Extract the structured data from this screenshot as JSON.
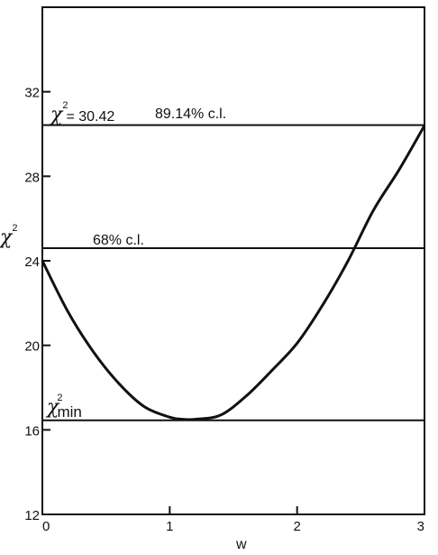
{
  "chart_data": {
    "type": "line",
    "xlabel": "w",
    "ylabel_symbol": "χ",
    "ylabel_exponent": "2",
    "xlim": [
      0,
      3
    ],
    "ylim": [
      12,
      36
    ],
    "x_ticks": [
      0,
      1,
      2,
      3
    ],
    "x_tick_labels": [
      "0",
      "1",
      "2",
      "3"
    ],
    "y_ticks": [
      12,
      16,
      20,
      24,
      28,
      32
    ],
    "y_tick_labels": [
      "12",
      "16",
      "20",
      "24",
      "28",
      "32"
    ],
    "grid": false,
    "series": [
      {
        "x": [
          0,
          0.2,
          0.4,
          0.6,
          0.8,
          1.0,
          1.1,
          1.2,
          1.4,
          1.6,
          1.8,
          2.0,
          2.2,
          2.4,
          2.6,
          2.8,
          3.0
        ],
        "y": [
          24.0,
          21.6,
          19.7,
          18.2,
          17.1,
          16.6,
          16.5,
          16.5,
          16.7,
          17.6,
          18.8,
          20.1,
          21.9,
          24.0,
          26.4,
          28.3,
          30.4
        ]
      }
    ],
    "reference_lines": [
      {
        "y": 30.42,
        "symbol": "χ",
        "exponent": "2",
        "label_value": "= 30.42",
        "label_cl": "89.14% c.l."
      },
      {
        "y": 24.6,
        "label": "68% c.l."
      },
      {
        "y": 16.45,
        "symbol": "χ",
        "exponent": "2",
        "subscript": "min"
      }
    ]
  }
}
